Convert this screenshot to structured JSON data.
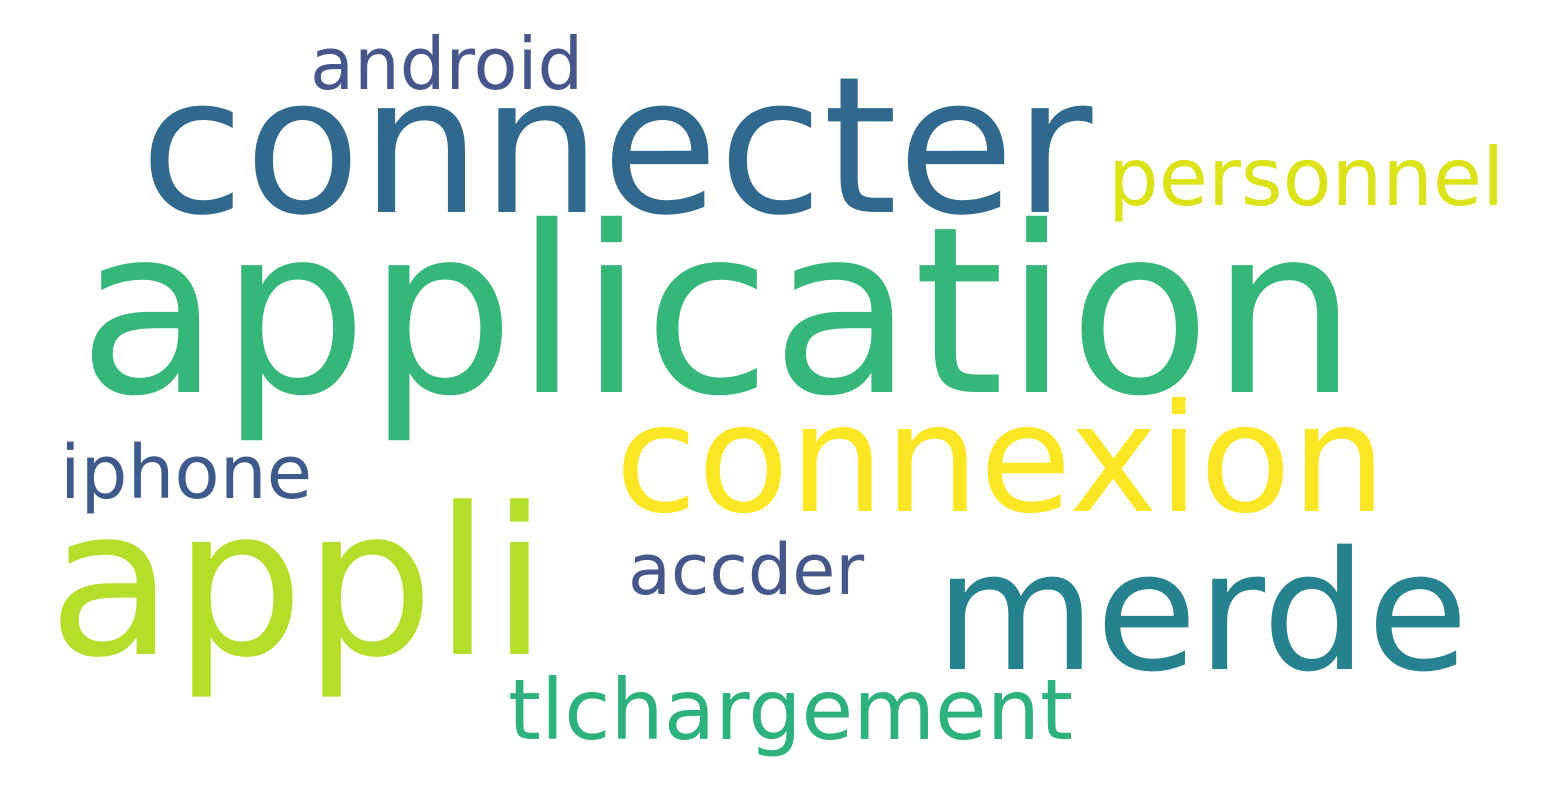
{
  "words": [
    {
      "text": "application",
      "color": "#35b779"
    },
    {
      "text": "connecter",
      "color": "#31688e"
    },
    {
      "text": "connexion",
      "color": "#fde725"
    },
    {
      "text": "appli",
      "color": "#b5de2b"
    },
    {
      "text": "merde",
      "color": "#26828e"
    },
    {
      "text": "tlchargement",
      "color": "#2db27d"
    },
    {
      "text": "personnel",
      "color": "#dce319"
    },
    {
      "text": "android",
      "color": "#46568a"
    },
    {
      "text": "iphone",
      "color": "#3e5a8c"
    },
    {
      "text": "accder",
      "color": "#46578a"
    }
  ]
}
